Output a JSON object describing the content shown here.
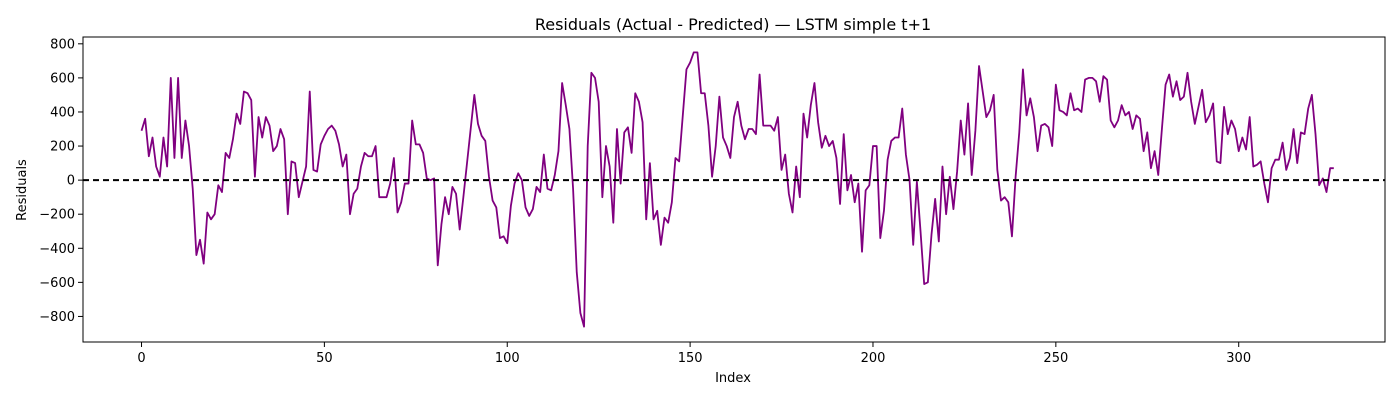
{
  "chart_data": {
    "type": "line",
    "title": "Residuals (Actual - Predicted) — LSTM simple t+1",
    "xlabel": "Index",
    "ylabel": "Residuals",
    "xlim": [
      -16,
      340
    ],
    "ylim": [
      -950,
      840
    ],
    "xticks": [
      0,
      50,
      100,
      150,
      200,
      250,
      300
    ],
    "yticks": [
      -800,
      -600,
      -400,
      -200,
      0,
      200,
      400,
      600,
      800
    ],
    "tick_labels": {
      "x": [
        "0",
        "50",
        "100",
        "150",
        "200",
        "250",
        "300"
      ],
      "y": [
        "−800",
        "−600",
        "−400",
        "−200",
        "0",
        "200",
        "400",
        "600",
        "800"
      ]
    },
    "grid": false,
    "legend": "none",
    "reference_line": {
      "y": 0,
      "style": "dashed",
      "color": "#000000"
    },
    "series": [
      {
        "color": "#800080",
        "x_start": 0,
        "values": [
          290,
          360,
          140,
          250,
          80,
          20,
          250,
          80,
          600,
          130,
          600,
          130,
          350,
          200,
          -50,
          -440,
          -350,
          -490,
          -190,
          -230,
          -200,
          -30,
          -70,
          160,
          130,
          240,
          390,
          330,
          520,
          510,
          470,
          20,
          370,
          250,
          370,
          320,
          170,
          200,
          300,
          240,
          -200,
          110,
          100,
          -100,
          -10,
          80,
          520,
          60,
          50,
          210,
          260,
          300,
          320,
          290,
          210,
          80,
          150,
          -200,
          -80,
          -50,
          80,
          160,
          140,
          140,
          200,
          -100,
          -100,
          -100,
          -20,
          130,
          -190,
          -130,
          -20,
          -20,
          350,
          210,
          210,
          160,
          10,
          0,
          10,
          -500,
          -260,
          -100,
          -200,
          -40,
          -80,
          -290,
          -100,
          100,
          300,
          500,
          330,
          260,
          230,
          20,
          -120,
          -160,
          -340,
          -330,
          -370,
          -150,
          -20,
          40,
          0,
          -160,
          -210,
          -170,
          -40,
          -70,
          150,
          -50,
          -60,
          30,
          170,
          570,
          440,
          300,
          -50,
          -540,
          -780,
          -860,
          200,
          630,
          600,
          460,
          -100,
          200,
          80,
          -250,
          300,
          -20,
          280,
          310,
          160,
          510,
          460,
          340,
          -230,
          100,
          -230,
          -180,
          -380,
          -220,
          -250,
          -130,
          130,
          110,
          380,
          650,
          690,
          750,
          750,
          510,
          510,
          320,
          20,
          200,
          490,
          250,
          200,
          130,
          370,
          460,
          320,
          240,
          300,
          300,
          270,
          620,
          320,
          320,
          320,
          290,
          370,
          60,
          150,
          -80,
          -190,
          80,
          -100,
          390,
          250,
          440,
          570,
          340,
          190,
          260,
          200,
          230,
          130,
          -140,
          270,
          -60,
          30,
          -130,
          -20,
          -420,
          -60,
          -30,
          200,
          200,
          -340,
          -180,
          120,
          230,
          250,
          250,
          420,
          150,
          0,
          -380,
          -10,
          -300,
          -610,
          -600,
          -320,
          -110,
          -360,
          80,
          -200,
          20,
          -170,
          50,
          350,
          150,
          450,
          30,
          290,
          670,
          520,
          370,
          410,
          500,
          60,
          -120,
          -100,
          -130,
          -330,
          20,
          280,
          650,
          380,
          480,
          370,
          170,
          320,
          330,
          310,
          200,
          560,
          410,
          400,
          380,
          510,
          410,
          420,
          400,
          590,
          600,
          600,
          580,
          460,
          610,
          590,
          350,
          310,
          350,
          440,
          380,
          400,
          300,
          380,
          360,
          170,
          280,
          70,
          170,
          30,
          300,
          560,
          620,
          490,
          580,
          470,
          490,
          630,
          460,
          330,
          430,
          530,
          340,
          380,
          450,
          110,
          100,
          430,
          270,
          350,
          300,
          170,
          250,
          180,
          370,
          80,
          90,
          110,
          -20,
          -130,
          70,
          120,
          120,
          220,
          60,
          130,
          300,
          100,
          280,
          270,
          420,
          500,
          270,
          -30,
          10,
          -70,
          70,
          70
        ]
      }
    ]
  }
}
